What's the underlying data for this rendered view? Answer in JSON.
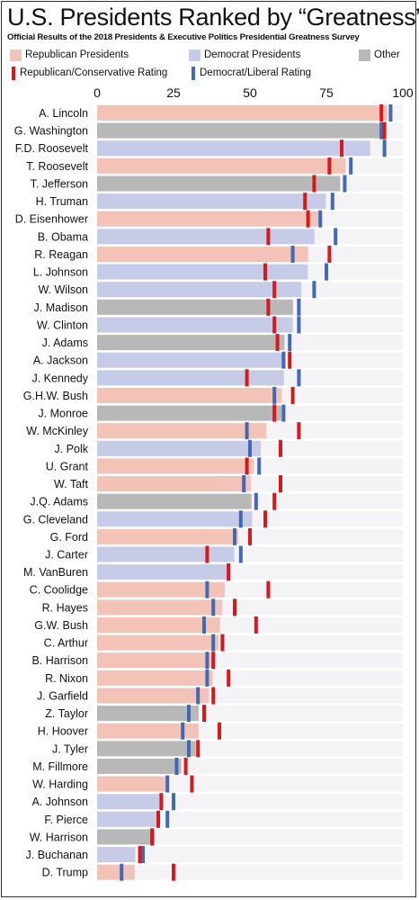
{
  "title": "U.S. Presidents Ranked by “Greatness”",
  "subtitle": "Official Results of the 2018 Presidents & Executive Politics Presidential Greatness Survey",
  "colors": {
    "republican": "#f2c3b6",
    "democrat": "#c6cbe8",
    "other": "#b8b8b8",
    "track": "#f4f4f6",
    "rep_rating": "#d7191c",
    "dem_rating": "#4169b4"
  },
  "legend": [
    {
      "label": "Republican Presidents",
      "kind": "bar",
      "color": "#f2c3b6"
    },
    {
      "label": "Democrat Presidents",
      "kind": "bar",
      "color": "#c6cbe8"
    },
    {
      "label": "Other",
      "kind": "bar",
      "color": "#b8b8b8"
    },
    {
      "label": "Republican/Conservative Rating",
      "kind": "tick",
      "color": "#d7191c"
    },
    {
      "label": "Democrat/Liberal Rating",
      "kind": "tick",
      "color": "#4169b4"
    }
  ],
  "chart_data": {
    "type": "bar",
    "orientation": "horizontal",
    "xlim": [
      0,
      100
    ],
    "xticks": [
      0,
      25,
      50,
      75,
      100
    ],
    "axis_position": "top",
    "grid": false,
    "categories": [
      "A. Lincoln",
      "G. Washington",
      "F.D. Roosevelt",
      "T. Roosevelt",
      "T. Jefferson",
      "H. Truman",
      "D. Eisenhower",
      "B. Obama",
      "R. Reagan",
      "L. Johnson",
      "W. Wilson",
      "J. Madison",
      "W. Clinton",
      "J. Adams",
      "A. Jackson",
      "J. Kennedy",
      "G.H.W. Bush",
      "J. Monroe",
      "W. McKinley",
      "J. Polk",
      "U. Grant",
      "W. Taft",
      "J.Q. Adams",
      "G. Cleveland",
      "G. Ford",
      "J. Carter",
      "M. VanBuren",
      "C. Coolidge",
      "R. Hayes",
      "G.W. Bush",
      "C. Arthur",
      "B. Harrison",
      "R. Nixon",
      "J. Garfield",
      "Z. Taylor",
      "H. Hoover",
      "J. Tyler",
      "M. Fillmore",
      "W. Harding",
      "A. Johnson",
      "F. Pierce",
      "W. Harrison",
      "J. Buchanan",
      "D. Trump"
    ],
    "party": [
      "R",
      "O",
      "D",
      "R",
      "O",
      "D",
      "R",
      "D",
      "R",
      "D",
      "D",
      "O",
      "D",
      "O",
      "D",
      "D",
      "R",
      "O",
      "R",
      "D",
      "R",
      "R",
      "O",
      "D",
      "R",
      "D",
      "D",
      "R",
      "R",
      "R",
      "R",
      "R",
      "R",
      "R",
      "O",
      "R",
      "O",
      "O",
      "R",
      "D",
      "D",
      "O",
      "D",
      "R"
    ],
    "series": [
      {
        "name": "Overall",
        "values": [
          95.0,
          92.6,
          89.3,
          81.3,
          79.5,
          74.8,
          73.6,
          71.1,
          69.0,
          68.9,
          66.8,
          64.1,
          64.0,
          61.3,
          61.1,
          61.1,
          60.4,
          60.4,
          55.4,
          53.5,
          51.3,
          50.3,
          50.5,
          50.7,
          46.2,
          44.9,
          43.0,
          41.8,
          40.9,
          40.2,
          39.7,
          37.9,
          37.8,
          36.6,
          33.2,
          33.2,
          32.3,
          27.5,
          23.3,
          21.3,
          20.2,
          18.8,
          12.5,
          12.3
        ]
      },
      {
        "name": "Republican/Conservative Rating",
        "values": [
          93.0,
          94.0,
          80.0,
          76.0,
          71.0,
          68.0,
          69.0,
          56.0,
          76.0,
          55.0,
          58.0,
          56.0,
          58.0,
          59.0,
          63.0,
          49.0,
          64.0,
          58.0,
          66.0,
          60.0,
          49.0,
          60.0,
          58.0,
          55.0,
          50.0,
          36.0,
          43.0,
          56.0,
          45.0,
          52.0,
          41.0,
          38.0,
          43.0,
          38.0,
          35.0,
          40.0,
          33.0,
          29.0,
          31.0,
          21.0,
          20.0,
          18.0,
          14.0,
          25.0
        ]
      },
      {
        "name": "Democrat/Liberal Rating",
        "values": [
          96.0,
          93.0,
          94.0,
          83.0,
          81.0,
          77.0,
          73.0,
          78.0,
          64.0,
          75.0,
          71.0,
          66.0,
          66.0,
          63.0,
          61.0,
          66.0,
          58.0,
          61.0,
          49.0,
          50.0,
          53.0,
          48.0,
          52.0,
          47.0,
          45.0,
          47.0,
          43.0,
          36.0,
          38.0,
          35.0,
          38.0,
          36.0,
          36.0,
          33.0,
          30.0,
          28.0,
          30.0,
          26.0,
          23.0,
          25.0,
          23.0,
          18.0,
          15.0,
          8.0
        ]
      }
    ]
  }
}
